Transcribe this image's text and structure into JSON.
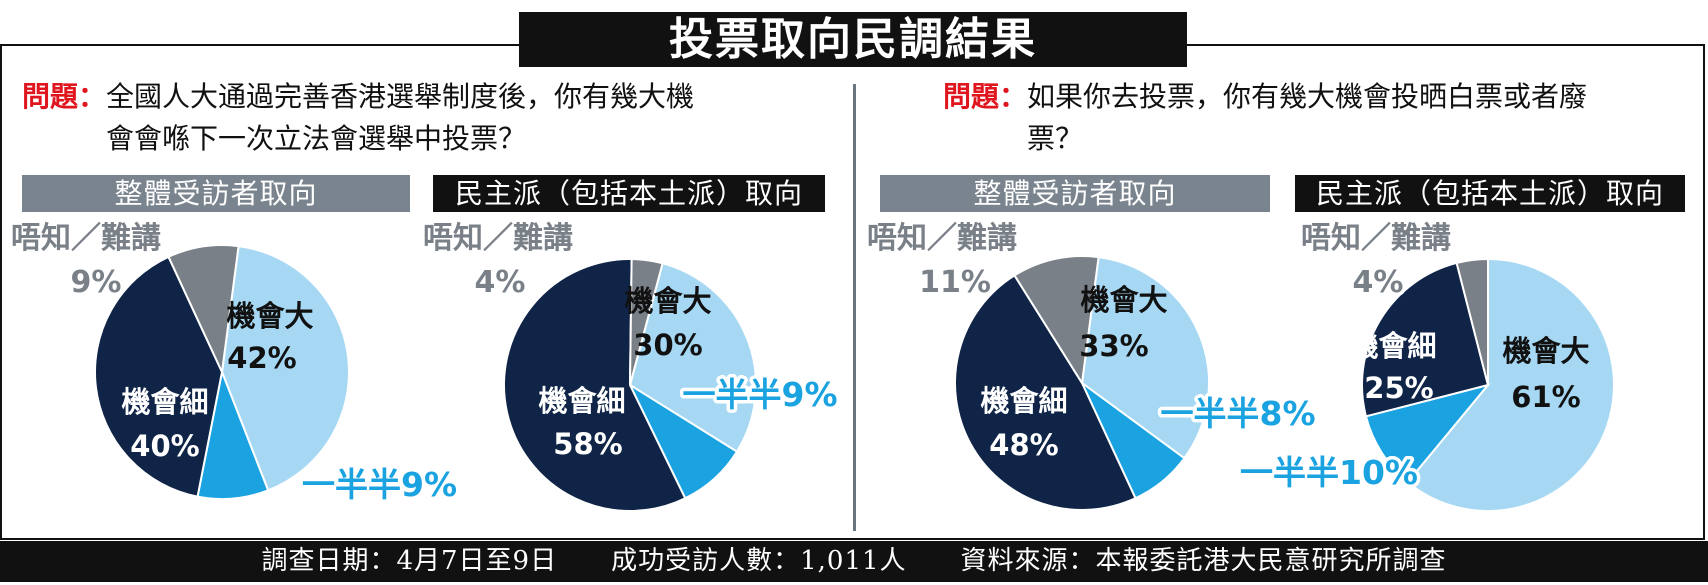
{
  "title": "投票取向民調結果",
  "questions": [
    {
      "label": "問題：",
      "text": "全國人大通過完善香港選舉制度後，你有幾大機會會喺下一次立法會選舉中投票？"
    },
    {
      "label": "問題：",
      "text": "如果你去投票，你有幾大機會投晒白票或者廢票？"
    }
  ],
  "group_headers": [
    "整體受訪者取向",
    "民主派（包括本土派）取向",
    "整體受訪者取向",
    "民主派（包括本土派）取向"
  ],
  "footer": "調查日期：4月7日至9日　　成功受訪人數：1,011人　　資料來源：本報委託港大民意研究所調查",
  "colors": {
    "high": "#a6d8f4",
    "half": "#1aa3e0",
    "low": "#0f2447",
    "unknown": "#7a8088"
  },
  "chart_data": [
    {
      "type": "pie",
      "title": "整體受訪者取向",
      "slices": [
        {
          "key": "high",
          "label": "機會大",
          "value": 42,
          "text": "42%"
        },
        {
          "key": "half",
          "label": "一半半",
          "value": 9,
          "text": "9%"
        },
        {
          "key": "low",
          "label": "機會細",
          "value": 40,
          "text": "40%"
        },
        {
          "key": "unknown",
          "label": "唔知／難講",
          "value": 9,
          "text": "9%"
        }
      ]
    },
    {
      "type": "pie",
      "title": "民主派（包括本土派）取向",
      "slices": [
        {
          "key": "high",
          "label": "機會大",
          "value": 30,
          "text": "30%"
        },
        {
          "key": "half",
          "label": "一半半",
          "value": 9,
          "text": "9%"
        },
        {
          "key": "low",
          "label": "機會細",
          "value": 58,
          "text": "58%"
        },
        {
          "key": "unknown",
          "label": "唔知／難講",
          "value": 4,
          "text": "4%"
        }
      ]
    },
    {
      "type": "pie",
      "title": "整體受訪者取向",
      "slices": [
        {
          "key": "high",
          "label": "機會大",
          "value": 33,
          "text": "33%"
        },
        {
          "key": "half",
          "label": "一半半",
          "value": 8,
          "text": "8%"
        },
        {
          "key": "low",
          "label": "機會細",
          "value": 48,
          "text": "48%"
        },
        {
          "key": "unknown",
          "label": "唔知／難講",
          "value": 11,
          "text": "11%"
        }
      ]
    },
    {
      "type": "pie",
      "title": "民主派（包括本土派）取向",
      "slices": [
        {
          "key": "high",
          "label": "機會大",
          "value": 61,
          "text": "61%"
        },
        {
          "key": "half",
          "label": "一半半",
          "value": 10,
          "text": "10%"
        },
        {
          "key": "low",
          "label": "機會細",
          "value": 25,
          "text": "25%"
        },
        {
          "key": "unknown",
          "label": "唔知／難講",
          "value": 4,
          "text": "4%"
        }
      ]
    }
  ]
}
